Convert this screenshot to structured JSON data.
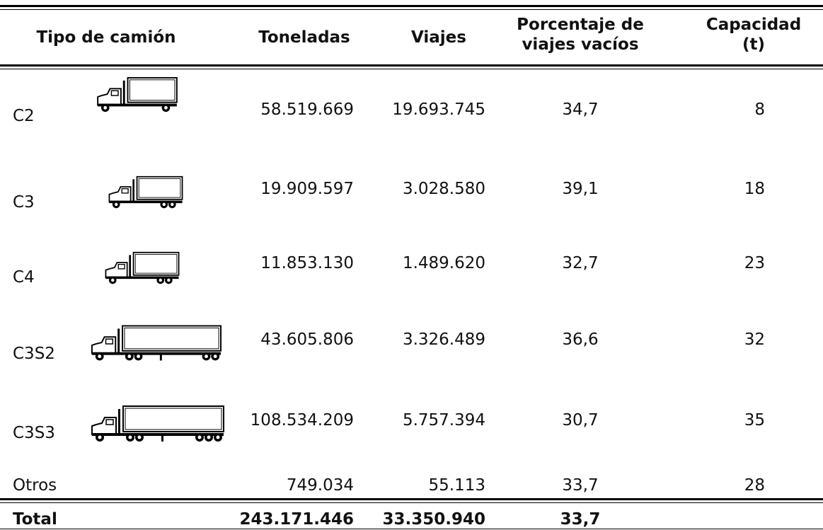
{
  "table": {
    "headers": [
      {
        "lines": [
          "Tipo de camión"
        ]
      },
      {
        "lines": [
          "Toneladas"
        ]
      },
      {
        "lines": [
          "Viajes"
        ]
      },
      {
        "lines": [
          "Porcentaje de",
          "viajes vacíos"
        ]
      },
      {
        "lines": [
          "Capacidad",
          "(t)"
        ]
      }
    ],
    "rows": [
      [
        "C2",
        "58.519.669",
        "19.693.745",
        "34,7",
        "8"
      ],
      [
        "C3",
        "19.909.597",
        "3.028.580",
        "39,1",
        "18"
      ],
      [
        "C4",
        "11.853.130",
        "1.489.620",
        "32,7",
        "23"
      ],
      [
        "C3S2",
        "43.605.806",
        "3.326.489",
        "36,6",
        "32"
      ],
      [
        "C3S3",
        "108.534.209",
        "5.757.394",
        "30,7",
        "35"
      ],
      [
        "Otros",
        "749.034",
        "55.113",
        "33,7",
        "28"
      ]
    ],
    "total": [
      "Total",
      "243.171.446",
      "33.350.940",
      "33,7"
    ]
  }
}
